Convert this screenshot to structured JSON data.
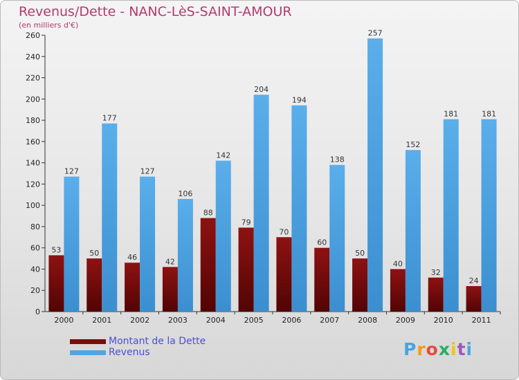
{
  "title": "Revenus/Dette - NANC-LèS-SAINT-AMOUR",
  "subtitle": "(en milliers d'€)",
  "logo": {
    "text": "Proxiti",
    "letters": [
      {
        "ch": "P",
        "color": "#4aa3df"
      },
      {
        "ch": "r",
        "color": "#f39c12"
      },
      {
        "ch": "o",
        "color": "#e74c3c"
      },
      {
        "ch": "x",
        "color": "#27ae60"
      },
      {
        "ch": "i",
        "color": "#f1c40f"
      },
      {
        "ch": "t",
        "color": "#9b59b6"
      },
      {
        "ch": "i",
        "color": "#4aa3df"
      }
    ]
  },
  "colors": {
    "dette": "#7b0b0b",
    "revenus": "#4fa6e4"
  },
  "chart_data": {
    "type": "bar",
    "title": "Revenus/Dette - NANC-LèS-SAINT-AMOUR",
    "subtitle": "(en milliers d'€)",
    "categories": [
      "2000",
      "2001",
      "2002",
      "2003",
      "2004",
      "2005",
      "2006",
      "2007",
      "2008",
      "2009",
      "2010",
      "2011"
    ],
    "series": [
      {
        "name": "Montant de la Dette",
        "values": [
          53,
          50,
          46,
          42,
          88,
          79,
          70,
          60,
          50,
          40,
          32,
          24
        ]
      },
      {
        "name": "Revenus",
        "values": [
          127,
          177,
          127,
          106,
          142,
          204,
          194,
          138,
          257,
          152,
          181,
          181
        ]
      }
    ],
    "ylim": [
      0,
      260
    ],
    "yticks": [
      0,
      20,
      40,
      60,
      80,
      100,
      120,
      140,
      160,
      180,
      200,
      220,
      240,
      260
    ],
    "grid": false,
    "legend_position": "bottom-left"
  }
}
